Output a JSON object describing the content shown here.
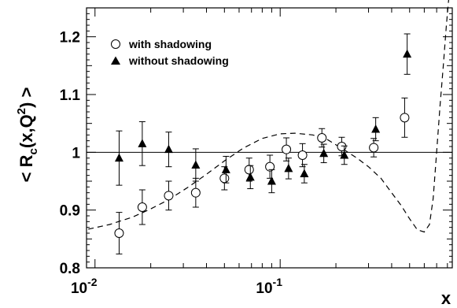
{
  "chart_data": {
    "type": "scatter",
    "xscale": "log",
    "xlim": [
      0.009,
      0.85
    ],
    "ylim": [
      0.8,
      1.25
    ],
    "xlabel": "x",
    "ylabel": "< R_c(x,Q^2) >",
    "ylabel_parts": {
      "open": "< R",
      "sub": "c",
      "mid": "(x,Q",
      "sup": "2",
      "close": ") >"
    },
    "xtick_labels": [
      {
        "x": 0.01,
        "base": "10",
        "exp": "-2"
      },
      {
        "x": 0.1,
        "base": "10",
        "exp": "-1"
      }
    ],
    "ytick_labels": [
      "0.8",
      "0.9",
      "1",
      "1.1",
      "1.2"
    ],
    "ytick_values": [
      0.8,
      0.9,
      1.0,
      1.1,
      1.2
    ],
    "reference_line": 1.0,
    "legend_position": "top-left",
    "series": [
      {
        "name": "with shadowing",
        "marker": "open-circle",
        "x": [
          0.0135,
          0.018,
          0.025,
          0.035,
          0.05,
          0.068,
          0.088,
          0.108,
          0.132,
          0.168,
          0.215,
          0.32,
          0.47
        ],
        "y": [
          0.86,
          0.905,
          0.925,
          0.93,
          0.955,
          0.97,
          0.975,
          1.005,
          0.995,
          1.025,
          1.01,
          1.008,
          1.06
        ],
        "err": [
          0.036,
          0.03,
          0.025,
          0.025,
          0.02,
          0.02,
          0.02,
          0.02,
          0.02,
          0.016,
          0.016,
          0.016,
          0.034
        ]
      },
      {
        "name": "without shadowing",
        "marker": "filled-triangle",
        "x": [
          0.0135,
          0.018,
          0.025,
          0.035,
          0.051,
          0.069,
          0.09,
          0.111,
          0.135,
          0.172,
          0.222,
          0.328,
          0.485
        ],
        "y": [
          0.99,
          1.015,
          1.005,
          0.978,
          0.97,
          0.957,
          0.95,
          0.972,
          0.963,
          0.998,
          0.995,
          1.04,
          1.17
        ],
        "err": [
          0.047,
          0.038,
          0.03,
          0.028,
          0.023,
          0.02,
          0.02,
          0.018,
          0.016,
          0.016,
          0.016,
          0.02,
          0.035
        ]
      },
      {
        "marker": "dashed-line",
        "x": [
          0.0092,
          0.012,
          0.016,
          0.02,
          0.025,
          0.032,
          0.04,
          0.05,
          0.063,
          0.08,
          0.1,
          0.12,
          0.15,
          0.18,
          0.22,
          0.26,
          0.3,
          0.35,
          0.4,
          0.45,
          0.5,
          0.55,
          0.6,
          0.64,
          0.67,
          0.7,
          0.73,
          0.76,
          0.79,
          0.81,
          0.83
        ],
        "y": [
          0.867,
          0.875,
          0.888,
          0.902,
          0.918,
          0.94,
          0.962,
          0.985,
          1.007,
          1.024,
          1.032,
          1.033,
          1.03,
          1.022,
          1.005,
          0.99,
          0.975,
          0.955,
          0.93,
          0.908,
          0.885,
          0.866,
          0.862,
          0.875,
          0.92,
          1.0,
          1.08,
          1.15,
          1.22,
          1.26,
          1.29
        ]
      }
    ]
  }
}
